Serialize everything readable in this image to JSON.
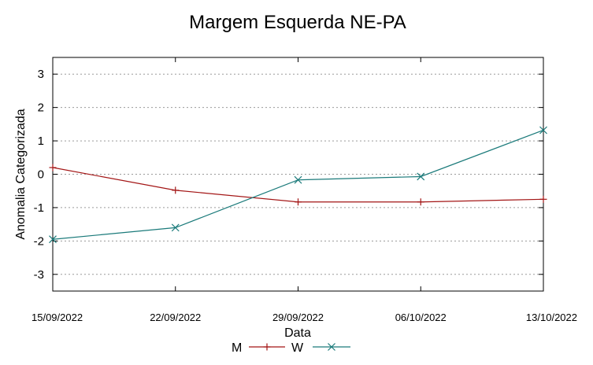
{
  "chart_data": {
    "type": "line",
    "title": "Margem Esquerda NE-PA",
    "xlabel": "Data",
    "ylabel": "Anomalia Categorizada",
    "categories": [
      "15/09/2022",
      "22/09/2022",
      "29/09/2022",
      "06/10/2022",
      "13/10/2022"
    ],
    "ylim": [
      -3.5,
      3.5
    ],
    "yticks": [
      -3,
      -2,
      -1,
      0,
      1,
      2,
      3
    ],
    "ytick_labels": [
      "-3",
      "-2",
      "-1",
      "0",
      "1",
      "2",
      "3"
    ],
    "grid": true,
    "legend_position": "bottom-center",
    "series": [
      {
        "name": "M",
        "color": "#a31515",
        "marker": "plus",
        "values": [
          0.2,
          -0.48,
          -0.83,
          -0.83,
          -0.75
        ]
      },
      {
        "name": "W",
        "color": "#1a7a7a",
        "marker": "cross",
        "values": [
          -1.95,
          -1.6,
          -0.17,
          -0.07,
          1.32
        ]
      }
    ]
  }
}
